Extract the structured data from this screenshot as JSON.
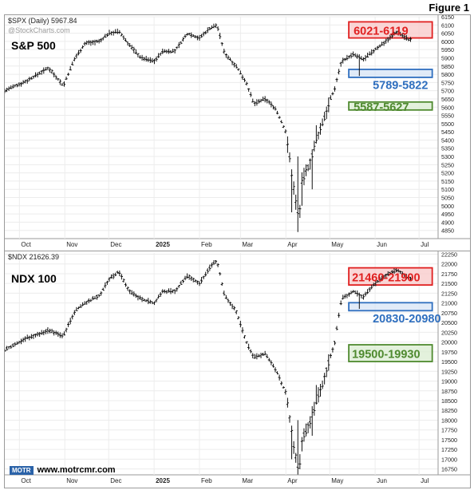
{
  "figure_label": "Figure 1",
  "chart_data": [
    {
      "type": "ohlc",
      "header": "$SPX (Daily) 5967.84",
      "watermark": "@StockCharts.com",
      "title": "S&P 500",
      "ylim": [
        4800,
        6150
      ],
      "y_ticks": [
        4850,
        4900,
        4950,
        5000,
        5050,
        5100,
        5150,
        5200,
        5250,
        5300,
        5350,
        5400,
        5450,
        5500,
        5550,
        5600,
        5650,
        5700,
        5750,
        5800,
        5850,
        5900,
        5950,
        6000,
        6050,
        6100,
        6150
      ],
      "x_ticks": [
        {
          "label": "Oct",
          "day": 0,
          "bold": false
        },
        {
          "label": "Nov",
          "day": 31,
          "bold": false
        },
        {
          "label": "Dec",
          "day": 61,
          "bold": false
        },
        {
          "label": "2025",
          "day": 92,
          "bold": true
        },
        {
          "label": "Feb",
          "day": 123,
          "bold": false
        },
        {
          "label": "Mar",
          "day": 151,
          "bold": false
        },
        {
          "label": "Apr",
          "day": 182,
          "bold": false
        },
        {
          "label": "May",
          "day": 212,
          "bold": false
        },
        {
          "label": "Jun",
          "day": 243,
          "bold": false
        },
        {
          "label": "Jul",
          "day": 273,
          "bold": false
        }
      ],
      "x_range_days": [
        -10,
        286
      ],
      "zones": [
        {
          "label": "6021-6119",
          "low": 6021,
          "high": 6119,
          "color": "#e02020",
          "fill": "#f8c8c8",
          "label_pos": "inside"
        },
        {
          "label": "5789-5822",
          "low": 5789,
          "high": 5822,
          "color": "#2f6fbf",
          "fill": "#d7e4f5",
          "label_pos": "below"
        },
        {
          "label": "5587-5627",
          "low": 5587,
          "high": 5627,
          "color": "#4f8a2f",
          "fill": "#d9ecd0",
          "label_pos": "inside"
        }
      ],
      "anchors": [
        [
          -10,
          5700
        ],
        [
          5,
          5760
        ],
        [
          20,
          5840
        ],
        [
          30,
          5730
        ],
        [
          38,
          5900
        ],
        [
          45,
          5990
        ],
        [
          55,
          6000
        ],
        [
          61,
          6050
        ],
        [
          68,
          6060
        ],
        [
          75,
          5980
        ],
        [
          83,
          5900
        ],
        [
          92,
          5880
        ],
        [
          98,
          5940
        ],
        [
          106,
          5940
        ],
        [
          115,
          6050
        ],
        [
          123,
          6020
        ],
        [
          130,
          6080
        ],
        [
          135,
          6100
        ],
        [
          140,
          5930
        ],
        [
          148,
          5850
        ],
        [
          155,
          5750
        ],
        [
          160,
          5620
        ],
        [
          168,
          5650
        ],
        [
          175,
          5590
        ],
        [
          182,
          5450
        ],
        [
          188,
          5070
        ],
        [
          191,
          4900
        ],
        [
          193,
          5150
        ],
        [
          198,
          5250
        ],
        [
          203,
          5400
        ],
        [
          208,
          5530
        ],
        [
          212,
          5640
        ],
        [
          215,
          5700
        ],
        [
          220,
          5880
        ],
        [
          228,
          5920
        ],
        [
          235,
          5890
        ],
        [
          243,
          5950
        ],
        [
          250,
          6000
        ],
        [
          258,
          6060
        ],
        [
          266,
          6010
        ]
      ],
      "lows": [
        [
          186,
          4960
        ],
        [
          190,
          4840
        ],
        [
          193,
          5000
        ],
        [
          200,
          5100
        ],
        [
          232,
          5790
        ]
      ],
      "highs": [
        [
          190,
          5300
        ],
        [
          203,
          5490
        ],
        [
          258,
          6090
        ]
      ]
    },
    {
      "type": "ohlc",
      "header": "$NDX 21626.39",
      "title": "NDX 100",
      "ylim": [
        16600,
        22280
      ],
      "y_ticks": [
        16750,
        17000,
        17250,
        17500,
        17750,
        18000,
        18250,
        18500,
        18750,
        19000,
        19250,
        19500,
        19750,
        20000,
        20250,
        20500,
        20750,
        21000,
        21250,
        21500,
        21750,
        22000,
        22250
      ],
      "x_ticks": [
        {
          "label": "Oct",
          "day": 0,
          "bold": false
        },
        {
          "label": "Nov",
          "day": 31,
          "bold": false
        },
        {
          "label": "Dec",
          "day": 61,
          "bold": false
        },
        {
          "label": "2025",
          "day": 92,
          "bold": true
        },
        {
          "label": "Feb",
          "day": 123,
          "bold": false
        },
        {
          "label": "Mar",
          "day": 151,
          "bold": false
        },
        {
          "label": "Apr",
          "day": 182,
          "bold": false
        },
        {
          "label": "May",
          "day": 212,
          "bold": false
        },
        {
          "label": "Jun",
          "day": 243,
          "bold": false
        },
        {
          "label": "Jul",
          "day": 273,
          "bold": false
        }
      ],
      "x_range_days": [
        -10,
        286
      ],
      "zones": [
        {
          "label": "21460-21900",
          "low": 21460,
          "high": 21900,
          "color": "#e02020",
          "fill": "#f8c8c8",
          "label_pos": "inside"
        },
        {
          "label": "20830-20980",
          "low": 20830,
          "high": 20980,
          "color": "#2f6fbf",
          "fill": "#d7e4f5",
          "label_pos": "below"
        },
        {
          "label": "19500-19930",
          "low": 19500,
          "high": 19930,
          "color": "#4f8a2f",
          "fill": "#d9ecd0",
          "label_pos": "inside"
        }
      ],
      "anchors": [
        [
          -10,
          19800
        ],
        [
          5,
          20100
        ],
        [
          20,
          20300
        ],
        [
          30,
          20150
        ],
        [
          38,
          20800
        ],
        [
          45,
          21000
        ],
        [
          55,
          21200
        ],
        [
          61,
          21600
        ],
        [
          68,
          21800
        ],
        [
          75,
          21300
        ],
        [
          83,
          21100
        ],
        [
          92,
          21000
        ],
        [
          98,
          21300
        ],
        [
          106,
          21300
        ],
        [
          115,
          21700
        ],
        [
          123,
          21500
        ],
        [
          130,
          21900
        ],
        [
          135,
          22100
        ],
        [
          140,
          21200
        ],
        [
          148,
          20800
        ],
        [
          155,
          20000
        ],
        [
          160,
          19600
        ],
        [
          168,
          19700
        ],
        [
          175,
          19300
        ],
        [
          182,
          18700
        ],
        [
          188,
          17200
        ],
        [
          191,
          16700
        ],
        [
          193,
          17500
        ],
        [
          198,
          17900
        ],
        [
          203,
          18500
        ],
        [
          208,
          19000
        ],
        [
          212,
          19600
        ],
        [
          215,
          19900
        ],
        [
          220,
          21100
        ],
        [
          228,
          21300
        ],
        [
          235,
          21150
        ],
        [
          243,
          21500
        ],
        [
          250,
          21700
        ],
        [
          258,
          21850
        ],
        [
          266,
          21640
        ]
      ],
      "lows": [
        [
          186,
          17000
        ],
        [
          190,
          16620
        ],
        [
          193,
          17200
        ],
        [
          200,
          17600
        ],
        [
          232,
          20850
        ]
      ],
      "highs": [
        [
          190,
          18000
        ],
        [
          203,
          18900
        ],
        [
          258,
          22050
        ]
      ]
    }
  ],
  "branding": {
    "logo_text": "MOTR",
    "url": "www.motrcmr.com"
  }
}
